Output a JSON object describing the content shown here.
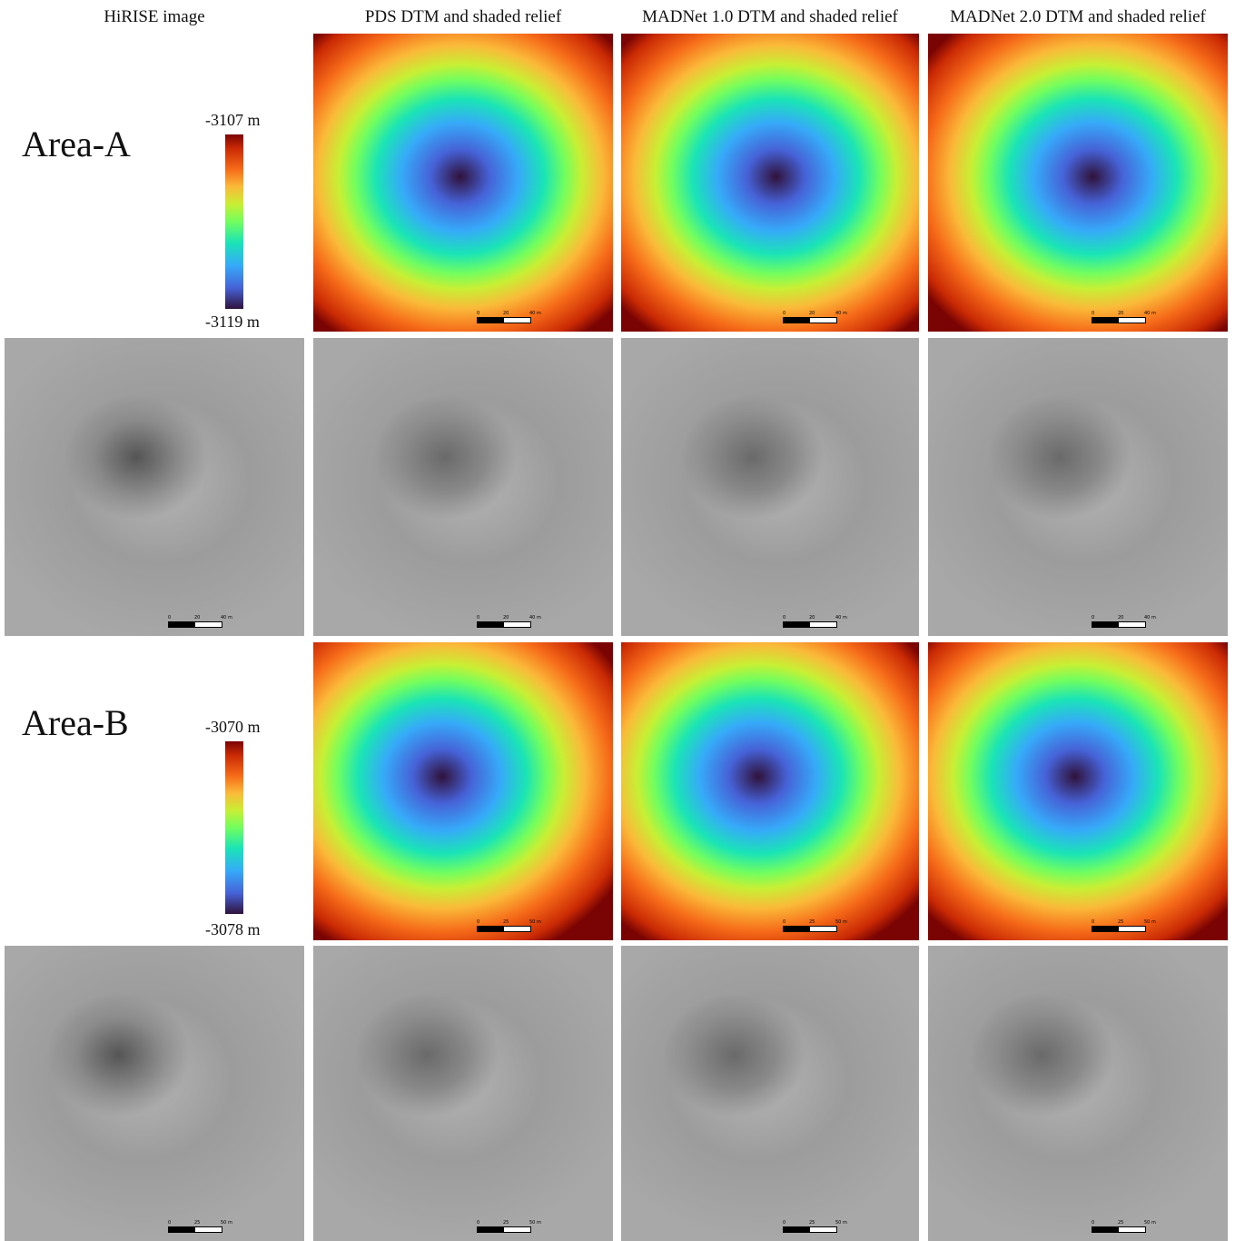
{
  "columns": [
    "HiRISE image",
    "PDS DTM and shaded relief",
    "MADNet 1.0 DTM and shaded relief",
    "MADNet 2.0 DTM and shaded relief"
  ],
  "areas": [
    {
      "label": "Area-A",
      "colorbar": {
        "max": "-3107 m",
        "min": "-3119 m"
      },
      "scale": [
        "0",
        "20",
        "40 m"
      ]
    },
    {
      "label": "Area-B",
      "colorbar": {
        "max": "-3070 m",
        "min": "-3078 m"
      },
      "scale": [
        "0",
        "25",
        "50 m"
      ]
    }
  ]
}
